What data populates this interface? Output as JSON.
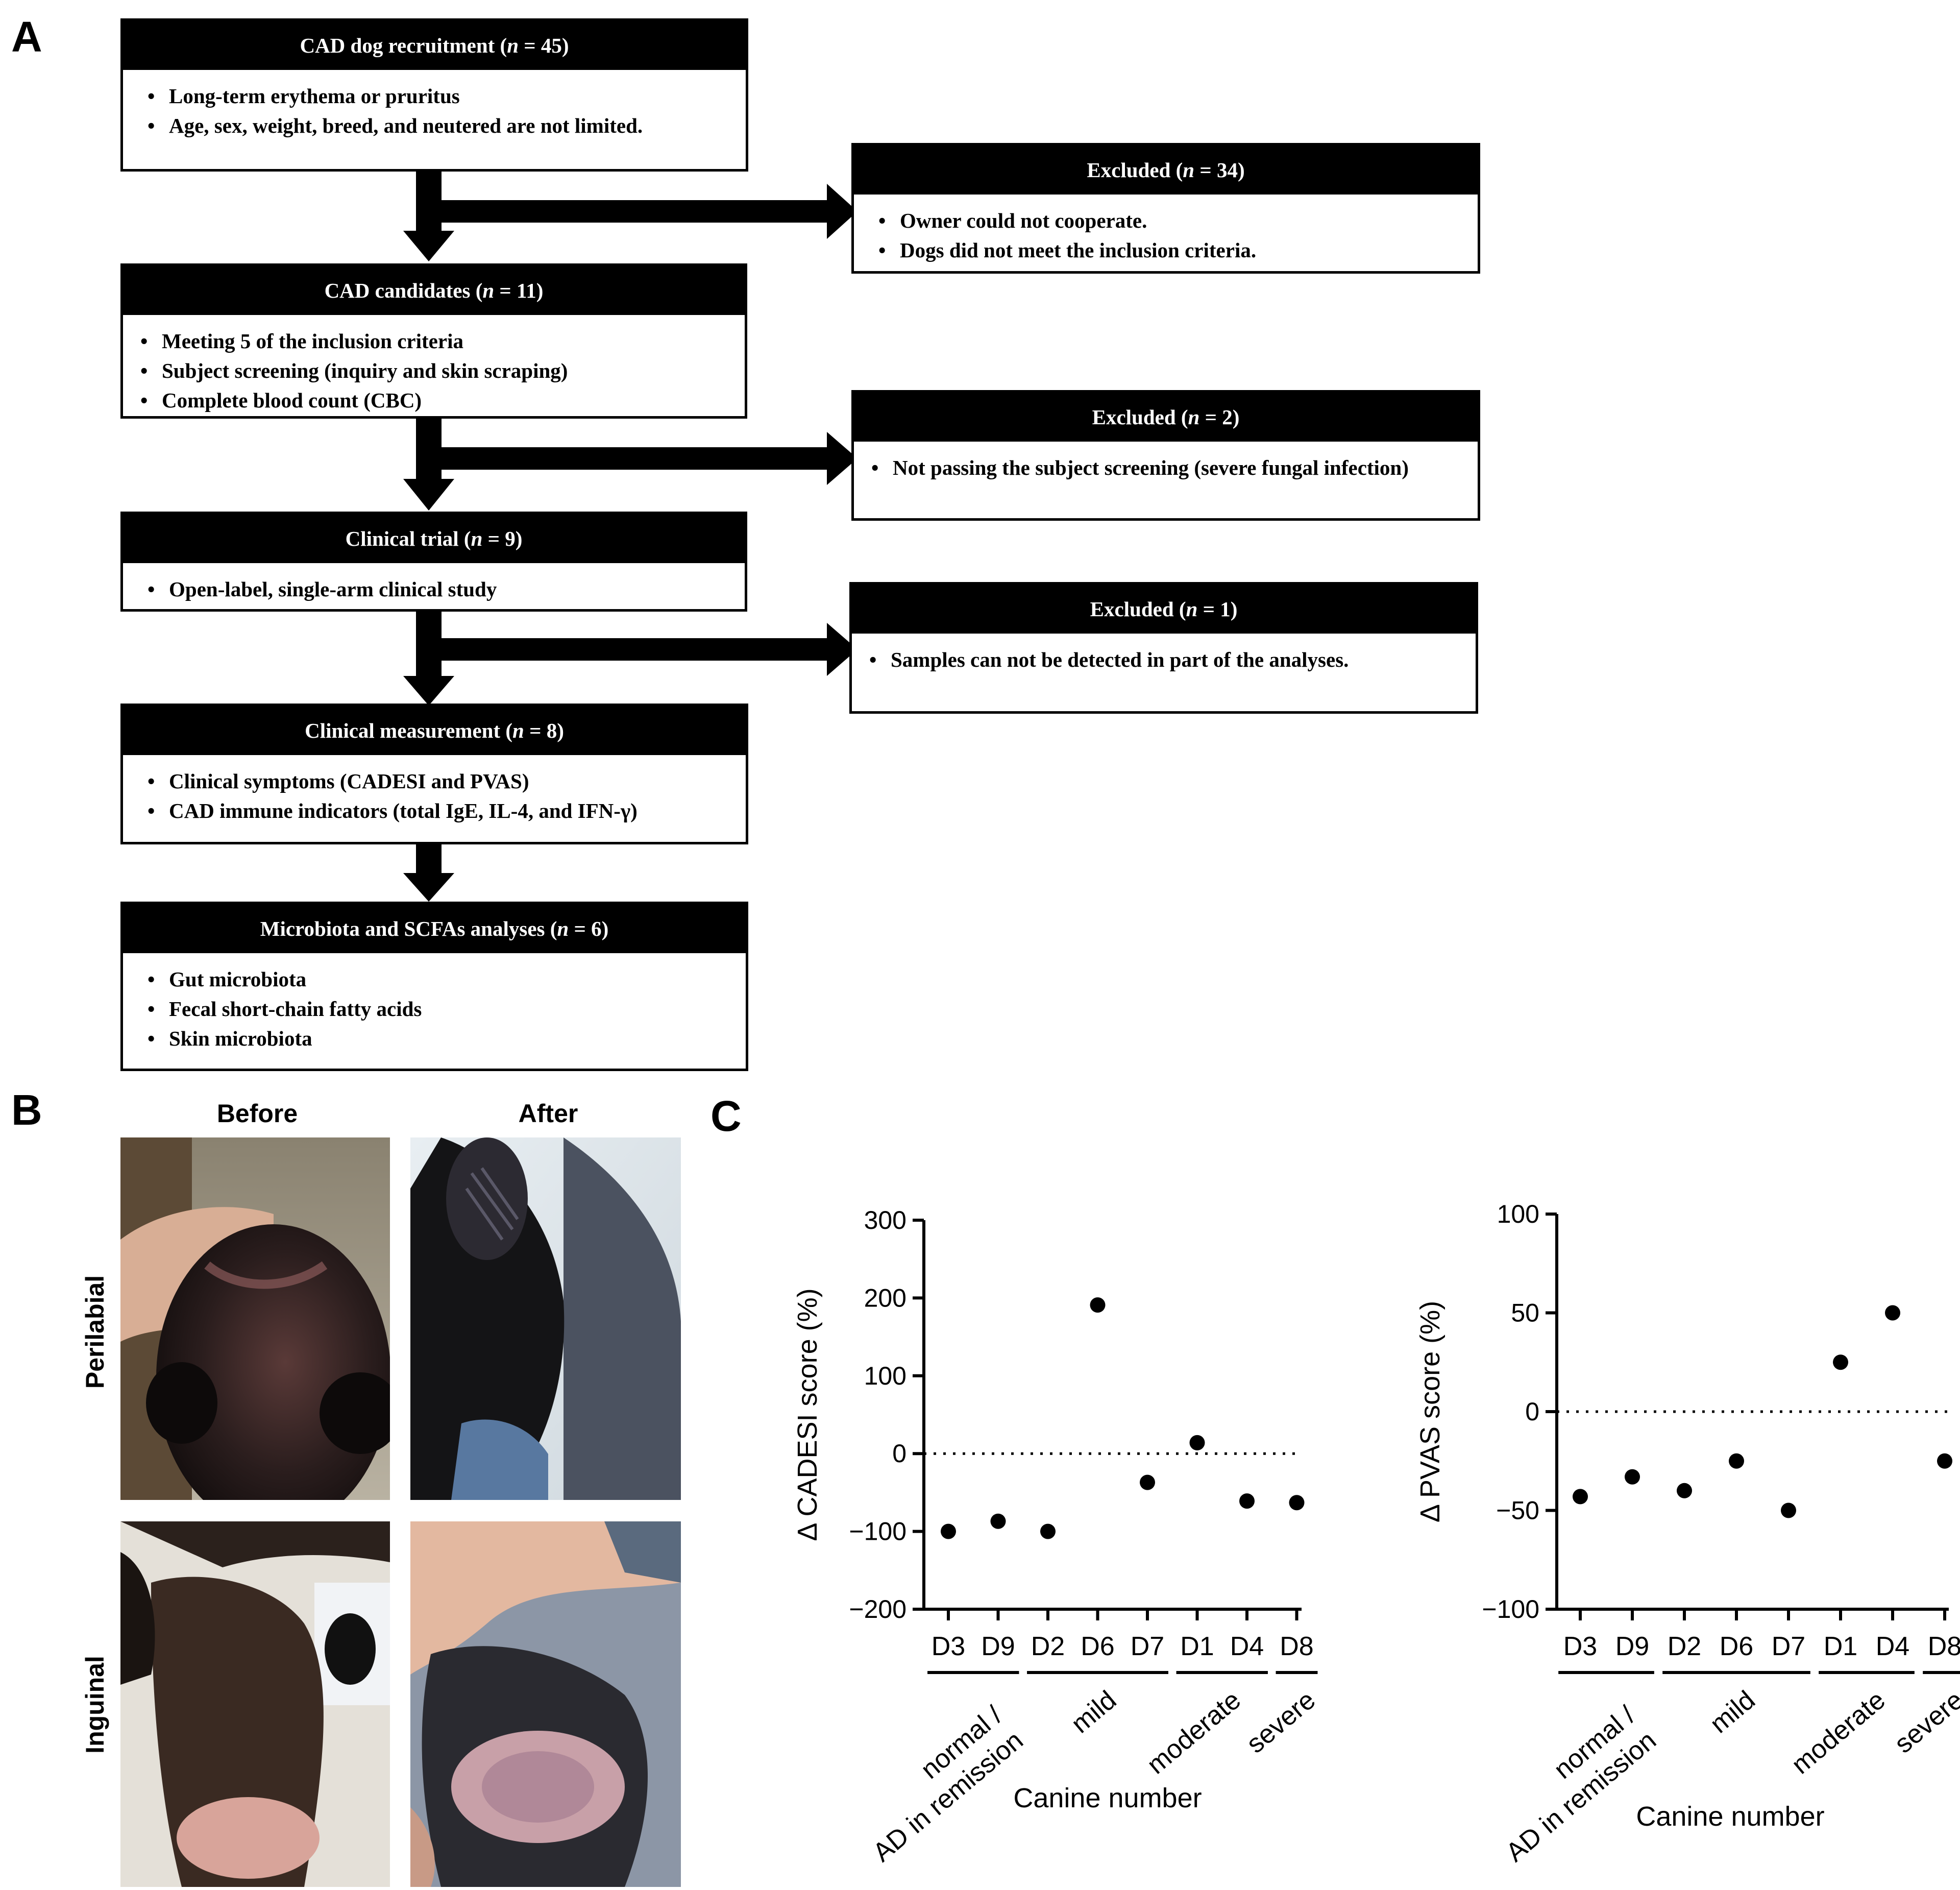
{
  "panels": {
    "a": "A",
    "b": "B",
    "c": "C"
  },
  "flow": {
    "recruit": {
      "title_pre": "CAD dog recruitment (",
      "title_n": "n",
      "title_post": " = 45)",
      "items": [
        "Long-term erythema or pruritus",
        "Age, sex, weight, breed, and neutered are not limited."
      ]
    },
    "excl1": {
      "title_pre": "Excluded (",
      "title_n": "n",
      "title_post": " = 34)",
      "items": [
        "Owner could not cooperate.",
        "Dogs did not meet the inclusion criteria."
      ]
    },
    "candidates": {
      "title_pre": "CAD candidates (",
      "title_n": "n",
      "title_post": " = 11)",
      "items": [
        "Meeting 5 of the inclusion criteria",
        "Subject screening (inquiry and skin scraping)",
        "Complete blood count (CBC)"
      ]
    },
    "excl2": {
      "title_pre": "Excluded (",
      "title_n": "n",
      "title_post": " = 2)",
      "items": [
        "Not passing the subject screening (severe fungal infection)"
      ]
    },
    "trial": {
      "title_pre": "Clinical trial (",
      "title_n": "n",
      "title_post": " = 9)",
      "items": [
        "Open-label, single-arm clinical study"
      ]
    },
    "excl3": {
      "title_pre": "Excluded (",
      "title_n": "n",
      "title_post": " = 1)",
      "items": [
        "Samples can not be detected in part of the analyses."
      ]
    },
    "measure": {
      "title_pre": "Clinical measurement (",
      "title_n": "n",
      "title_post": " = 8)",
      "items": [
        "Clinical symptoms (CADESI and PVAS)",
        "CAD immune indicators (total IgE, IL-4, and IFN-γ)"
      ]
    },
    "micro": {
      "title_pre": "Microbiota and SCFAs analyses (",
      "title_n": "n",
      "title_post": " = 6)",
      "items": [
        "Gut microbiota",
        "Fecal short-chain fatty acids",
        "Skin microbiota"
      ]
    }
  },
  "photos": {
    "col_before": "Before",
    "col_after": "After",
    "row_perilabial": "Perilabial",
    "row_inguinal": "Inguinal"
  },
  "chart_data": [
    {
      "type": "scatter",
      "title": "",
      "xlabel": "Canine number",
      "ylabel": "Δ CADESI score (%)",
      "ylim": [
        -200,
        300
      ],
      "yticks": [
        -200,
        -100,
        0,
        100,
        200,
        300
      ],
      "categories": [
        "D3",
        "D9",
        "D2",
        "D6",
        "D7",
        "D1",
        "D4",
        "D8"
      ],
      "values": [
        -100,
        -87,
        -100,
        191,
        -37,
        14,
        -61,
        -63
      ],
      "reference_line": 0,
      "groups": [
        {
          "label": "normal / AD in remission",
          "members": [
            "D3",
            "D9"
          ]
        },
        {
          "label": "mild",
          "members": [
            "D2",
            "D6",
            "D7"
          ]
        },
        {
          "label": "moderate",
          "members": [
            "D1",
            "D4"
          ]
        },
        {
          "label": "severe",
          "members": [
            "D8"
          ]
        }
      ]
    },
    {
      "type": "scatter",
      "title": "",
      "xlabel": "Canine number",
      "ylabel": "Δ PVAS score (%)",
      "ylim": [
        -100,
        100
      ],
      "yticks": [
        -100,
        -50,
        0,
        50,
        100
      ],
      "categories": [
        "D3",
        "D9",
        "D2",
        "D6",
        "D7",
        "D1",
        "D4",
        "D8"
      ],
      "values": [
        -43,
        -33,
        -40,
        -25,
        -50,
        25,
        50,
        -25
      ],
      "reference_line": 0,
      "groups": [
        {
          "label": "normal / AD in remission",
          "members": [
            "D3",
            "D9"
          ]
        },
        {
          "label": "mild",
          "members": [
            "D2",
            "D6",
            "D7"
          ]
        },
        {
          "label": "moderate",
          "members": [
            "D1",
            "D4"
          ]
        },
        {
          "label": "severe",
          "members": [
            "D8"
          ]
        }
      ]
    }
  ]
}
